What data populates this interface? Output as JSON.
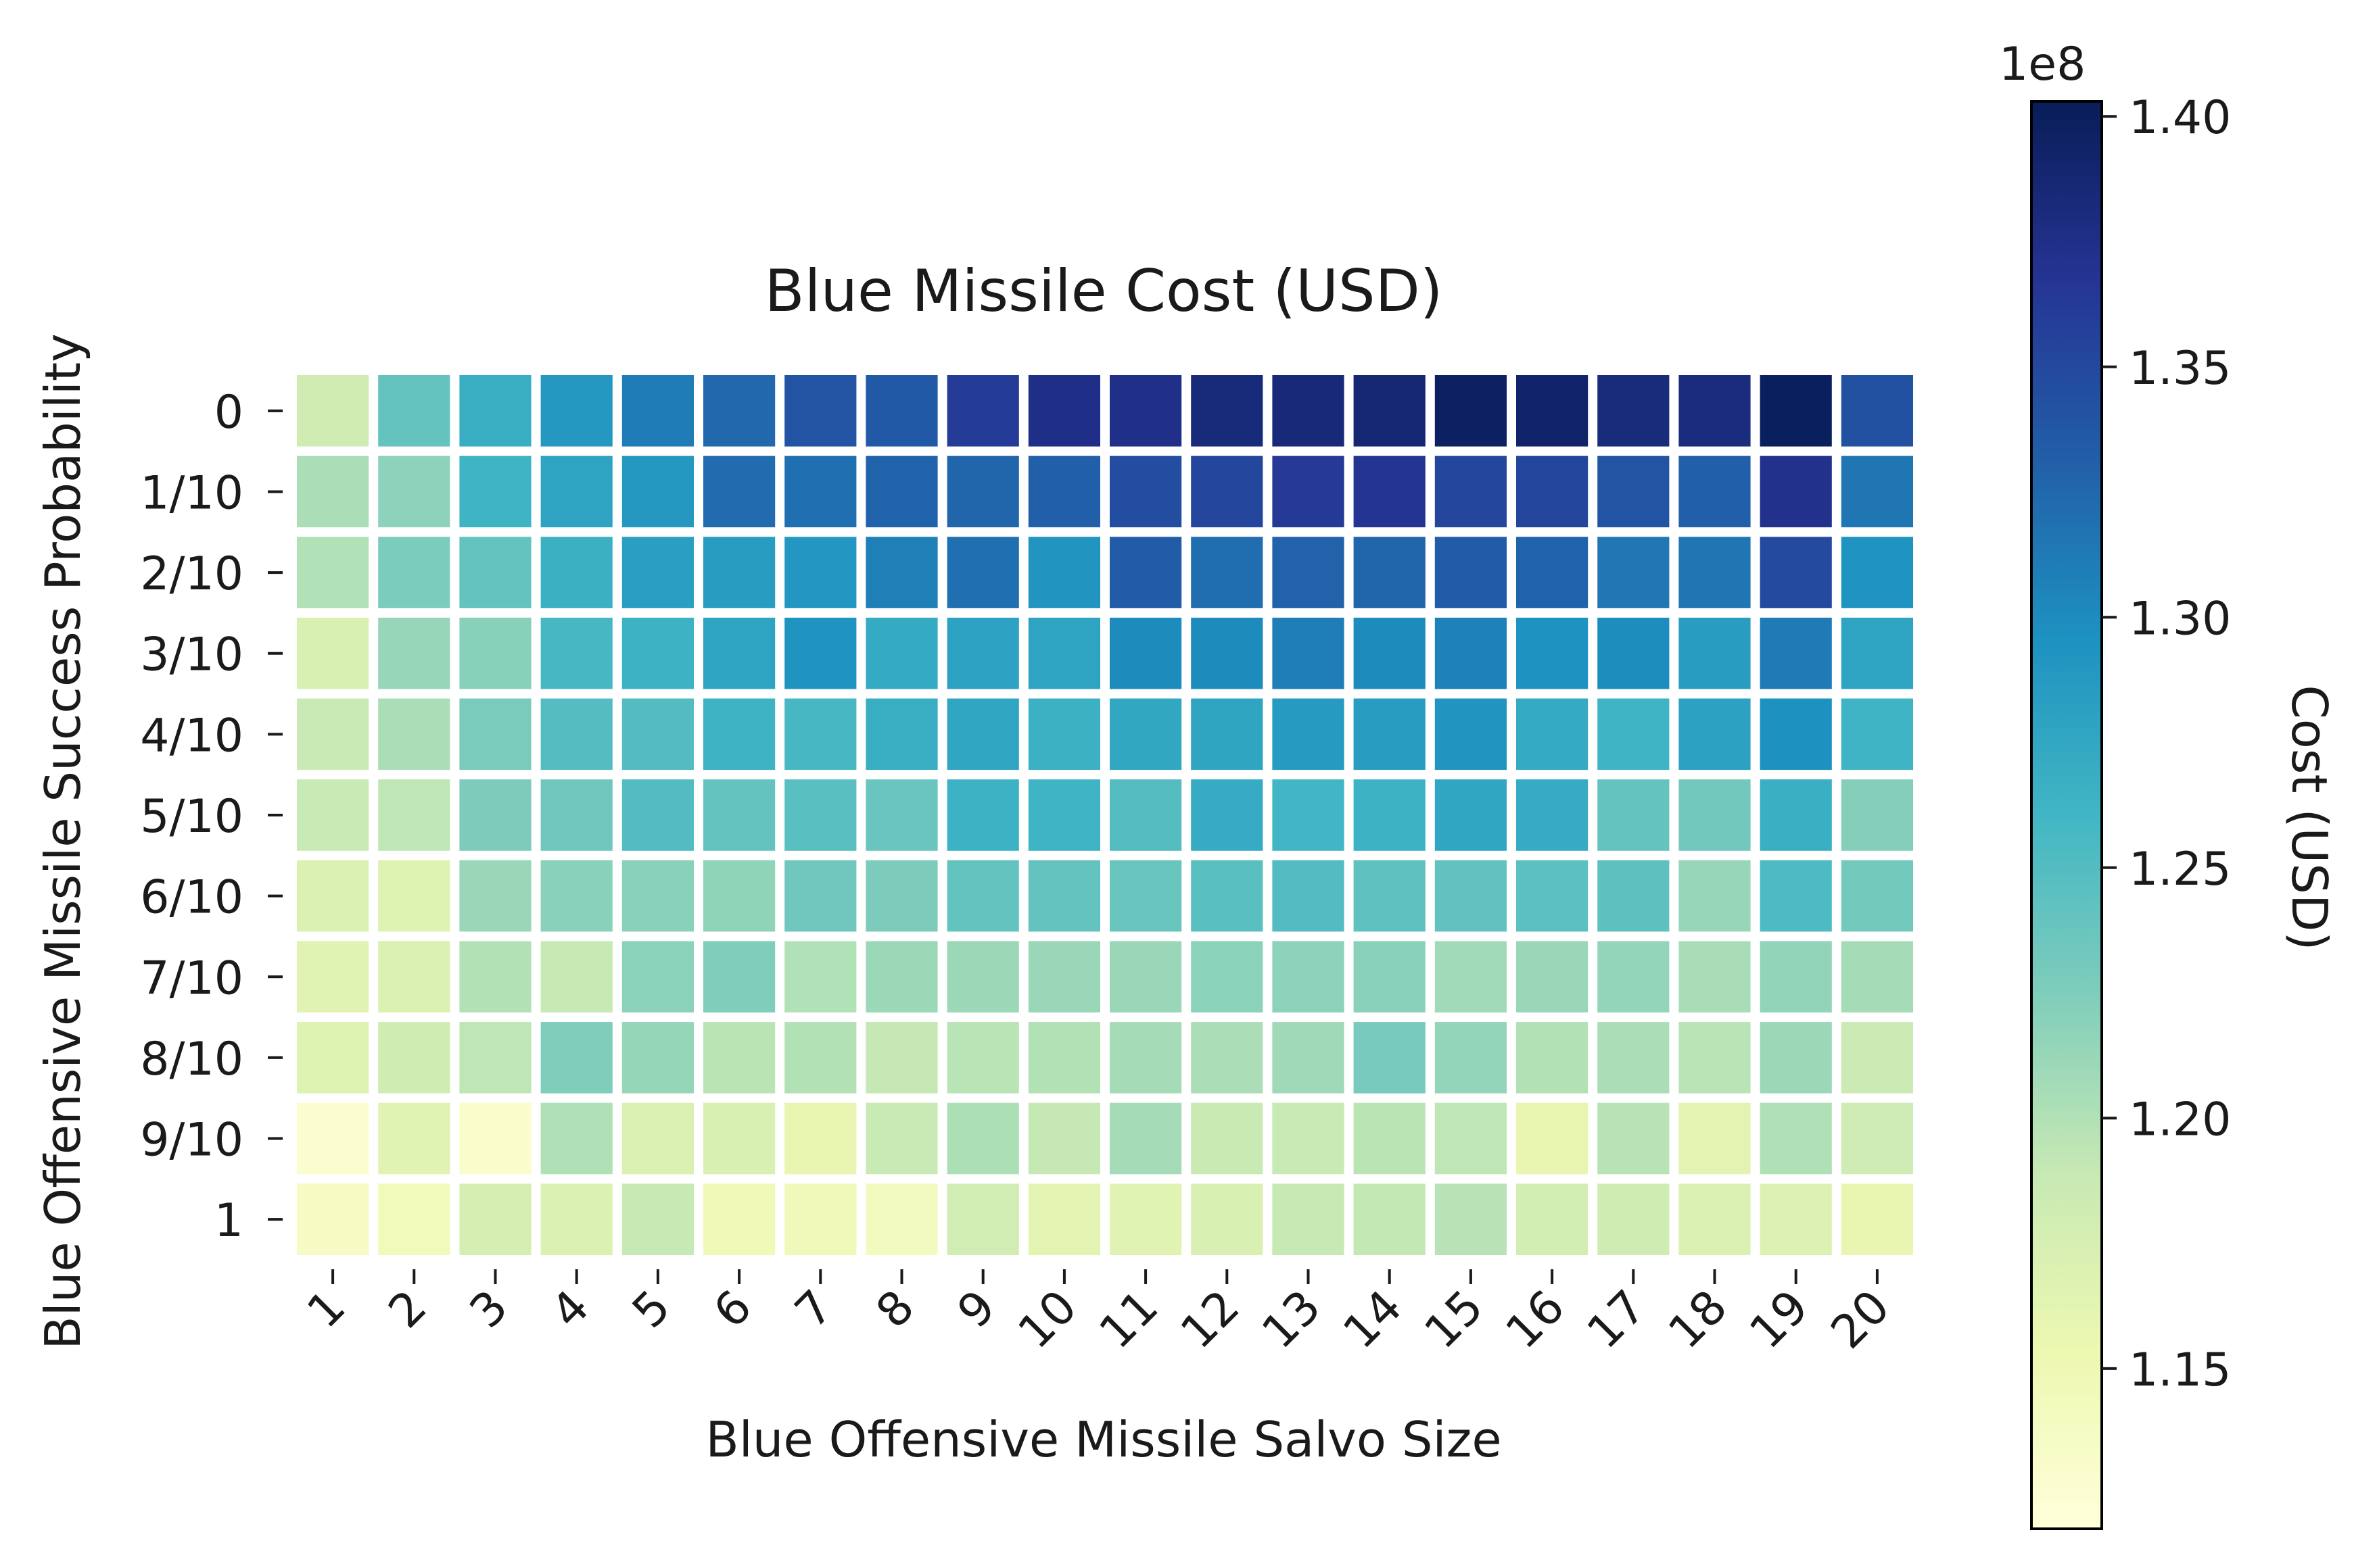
{
  "chart_data": {
    "type": "heatmap",
    "title": "Blue Missile Cost (USD)",
    "xlabel": "Blue Offensive Missile Salvo Size",
    "ylabel": "Blue Offensive Missile Success Probability",
    "x_categories": [
      "1",
      "2",
      "3",
      "4",
      "5",
      "6",
      "7",
      "8",
      "9",
      "10",
      "11",
      "12",
      "13",
      "14",
      "15",
      "16",
      "17",
      "18",
      "19",
      "20"
    ],
    "y_categories": [
      "0",
      "1/10",
      "2/10",
      "3/10",
      "4/10",
      "5/10",
      "6/10",
      "7/10",
      "8/10",
      "9/10",
      "1"
    ],
    "values": [
      [
        1.181,
        1.24,
        1.268,
        1.289,
        1.311,
        1.325,
        1.34,
        1.336,
        1.361,
        1.375,
        1.374,
        1.383,
        1.384,
        1.387,
        1.397,
        1.392,
        1.382,
        1.38,
        1.4,
        1.343
      ],
      [
        1.203,
        1.218,
        1.262,
        1.279,
        1.289,
        1.323,
        1.319,
        1.328,
        1.327,
        1.331,
        1.346,
        1.352,
        1.363,
        1.368,
        1.351,
        1.353,
        1.341,
        1.331,
        1.372,
        1.316
      ],
      [
        1.2,
        1.227,
        1.24,
        1.266,
        1.283,
        1.285,
        1.29,
        1.309,
        1.319,
        1.292,
        1.334,
        1.321,
        1.329,
        1.327,
        1.334,
        1.328,
        1.314,
        1.315,
        1.349,
        1.293
      ],
      [
        1.172,
        1.213,
        1.221,
        1.257,
        1.264,
        1.278,
        1.293,
        1.272,
        1.28,
        1.279,
        1.3,
        1.3,
        1.31,
        1.3,
        1.307,
        1.295,
        1.299,
        1.285,
        1.312,
        1.279
      ],
      [
        1.187,
        1.203,
        1.228,
        1.249,
        1.251,
        1.263,
        1.257,
        1.268,
        1.276,
        1.265,
        1.275,
        1.277,
        1.287,
        1.285,
        1.292,
        1.272,
        1.262,
        1.281,
        1.296,
        1.262
      ],
      [
        1.188,
        1.193,
        1.226,
        1.234,
        1.251,
        1.24,
        1.246,
        1.237,
        1.264,
        1.262,
        1.249,
        1.271,
        1.26,
        1.264,
        1.276,
        1.271,
        1.24,
        1.232,
        1.267,
        1.222
      ],
      [
        1.171,
        1.168,
        1.212,
        1.22,
        1.22,
        1.217,
        1.234,
        1.226,
        1.241,
        1.24,
        1.238,
        1.246,
        1.251,
        1.243,
        1.242,
        1.245,
        1.244,
        1.213,
        1.253,
        1.231
      ],
      [
        1.165,
        1.171,
        1.199,
        1.189,
        1.219,
        1.225,
        1.2,
        1.211,
        1.211,
        1.212,
        1.212,
        1.219,
        1.218,
        1.22,
        1.208,
        1.212,
        1.215,
        1.204,
        1.216,
        1.206
      ],
      [
        1.168,
        1.182,
        1.193,
        1.225,
        1.214,
        1.195,
        1.199,
        1.19,
        1.196,
        1.199,
        1.206,
        1.203,
        1.209,
        1.229,
        1.215,
        1.199,
        1.203,
        1.196,
        1.211,
        1.185
      ],
      [
        1.128,
        1.165,
        1.13,
        1.201,
        1.171,
        1.172,
        1.158,
        1.187,
        1.202,
        1.19,
        1.206,
        1.186,
        1.188,
        1.195,
        1.193,
        1.158,
        1.197,
        1.163,
        1.201,
        1.183
      ],
      [
        1.138,
        1.145,
        1.176,
        1.171,
        1.189,
        1.148,
        1.146,
        1.141,
        1.18,
        1.163,
        1.166,
        1.172,
        1.189,
        1.191,
        1.197,
        1.178,
        1.182,
        1.171,
        1.169,
        1.158
      ]
    ],
    "color_scale": {
      "vmin": 1.118,
      "vmax": 1.403,
      "colormap": "YlGnBu",
      "stops": [
        "#ffffd9",
        "#edf8b1",
        "#c7e9b4",
        "#7fcdbb",
        "#41b6c4",
        "#1d91c0",
        "#225ea8",
        "#253494",
        "#081d58"
      ],
      "label": "Cost (USD)",
      "ticks": [
        "1.15",
        "1.20",
        "1.25",
        "1.30",
        "1.35",
        "1.40"
      ],
      "tick_values": [
        1.15,
        1.2,
        1.25,
        1.3,
        1.35,
        1.4
      ],
      "offset_text": "1e8"
    }
  }
}
